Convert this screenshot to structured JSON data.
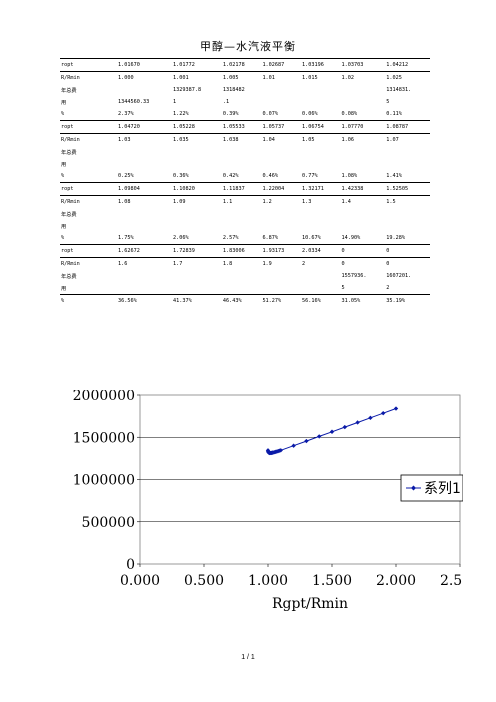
{
  "title": "甲醇—水汽液平衡",
  "table_rows": [
    {
      "rule": true,
      "cells": [
        "ropt",
        "1.01670",
        "1.01772",
        "1.02178",
        "1.02687",
        "1.03196",
        "1.03703",
        "1.04212"
      ]
    },
    {
      "rule": true,
      "cells": [
        "R/Rmin",
        "1.000",
        "1.001",
        "1.005",
        "1.01",
        "1.015",
        "1.02",
        "1.025"
      ]
    },
    {
      "rule": false,
      "cells": [
        "年总费",
        "",
        "1329387.8",
        "1318482",
        "",
        "",
        "",
        "1314831."
      ]
    },
    {
      "rule": false,
      "cells": [
        "用",
        "1344560.33",
        "1",
        ".1",
        "",
        "",
        "",
        "5"
      ]
    },
    {
      "rule": false,
      "cells": [
        "%",
        "2.37%",
        "1.22%",
        "0.39%",
        "0.07%",
        "0.06%",
        "0.08%",
        "0.11%"
      ]
    },
    {
      "rule": true,
      "cells": [
        "ropt",
        "1.04720",
        "1.05228",
        "1.05533",
        "1.05737",
        "1.06754",
        "1.07770",
        "1.08787"
      ]
    },
    {
      "rule": true,
      "cells": [
        "R/Rmin",
        "1.03",
        "1.035",
        "1.038",
        "1.04",
        "1.05",
        "1.06",
        "1.07"
      ]
    },
    {
      "rule": false,
      "cells": [
        "年总费",
        "",
        "",
        "",
        "",
        "",
        "",
        ""
      ]
    },
    {
      "rule": false,
      "cells": [
        "用",
        "",
        "",
        "",
        "",
        "",
        "",
        ""
      ]
    },
    {
      "rule": false,
      "cells": [
        "%",
        "0.25%",
        "0.36%",
        "0.42%",
        "0.46%",
        "0.77%",
        "1.08%",
        "1.41%"
      ]
    },
    {
      "rule": true,
      "cells": [
        "ropt",
        "1.09804",
        "1.10820",
        "1.11837",
        "1.22004",
        "1.32171",
        "1.42338",
        "1.52505"
      ]
    },
    {
      "rule": true,
      "cells": [
        "R/Rmin",
        "1.08",
        "1.09",
        "1.1",
        "1.2",
        "1.3",
        "1.4",
        "1.5"
      ]
    },
    {
      "rule": false,
      "cells": [
        "年总费",
        "",
        "",
        "",
        "",
        "",
        "",
        ""
      ]
    },
    {
      "rule": false,
      "cells": [
        "用",
        "",
        "",
        "",
        "",
        "",
        "",
        ""
      ]
    },
    {
      "rule": false,
      "cells": [
        "%",
        "1.75%",
        "2.06%",
        "2.57%",
        "6.87%",
        "10.67%",
        "14.90%",
        "19.28%"
      ]
    },
    {
      "rule": true,
      "cells": [
        "ropt",
        "1.62672",
        "1.72839",
        "1.83006",
        "1.93173",
        "2.0334",
        "0",
        "0"
      ]
    },
    {
      "rule": true,
      "cells": [
        "R/Rmin",
        "1.6",
        "1.7",
        "1.8",
        "1.9",
        "2",
        "0",
        "0"
      ]
    },
    {
      "rule": false,
      "cells": [
        "年总费",
        "",
        "",
        "",
        "",
        "",
        "1557936.",
        "1607201."
      ]
    },
    {
      "rule": false,
      "cells": [
        "用",
        "",
        "",
        "",
        "",
        "",
        "5",
        "2"
      ]
    },
    {
      "rule": true,
      "cells": [
        "%",
        "36.56%",
        "41.37%",
        "46.43%",
        "51.27%",
        "56.16%",
        "31.05%",
        "35.19%"
      ]
    }
  ],
  "chart_data": {
    "type": "scatter",
    "xlabel": "Rgpt/Rmin",
    "x_ticks": [
      "0.000",
      "0.500",
      "1.000",
      "1.500",
      "2.000",
      "2.500"
    ],
    "y_ticks": [
      "0",
      "500000",
      "1000000",
      "1500000",
      "2000000"
    ],
    "xlim": [
      0,
      2.5
    ],
    "ylim": [
      0,
      2000000
    ],
    "grid": true,
    "legend_position": "right",
    "series": [
      {
        "name": "系列1",
        "color": "#0a1aa8",
        "x": [
          1.0,
          1.001,
          1.005,
          1.01,
          1.015,
          1.02,
          1.025,
          1.03,
          1.035,
          1.038,
          1.04,
          1.05,
          1.06,
          1.07,
          1.08,
          1.09,
          1.1,
          1.2,
          1.3,
          1.4,
          1.5,
          1.6,
          1.7,
          1.8,
          1.9,
          2.0
        ],
        "y": [
          1344560,
          1329388,
          1318482,
          1314000,
          1313500,
          1313800,
          1314832,
          1316000,
          1317500,
          1318500,
          1319300,
          1323000,
          1327000,
          1331500,
          1336000,
          1341000,
          1346000,
          1400000,
          1455000,
          1510000,
          1565000,
          1620000,
          1675000,
          1730000,
          1785000,
          1840000
        ]
      }
    ]
  },
  "footer": "1 / 1"
}
